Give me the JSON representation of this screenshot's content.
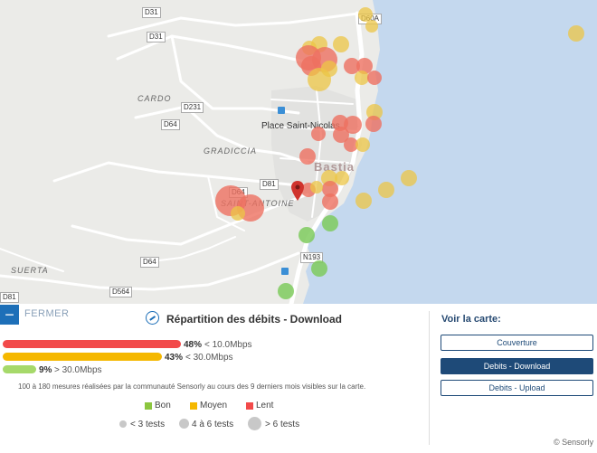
{
  "map": {
    "road_labels": [
      "D31",
      "D31",
      "D60A",
      "D231",
      "D64",
      "D64",
      "D81",
      "D64",
      "D81",
      "D564",
      "N193"
    ],
    "area_labels": [
      "CARDO",
      "GRADICCIA",
      "SAINT-ANTOINE",
      "SUERTA"
    ],
    "poi_label": "Place Saint-Nicolas",
    "city_label": "Bastia",
    "colors": {
      "land": "#ebebe8",
      "sea": "#c4d8ee",
      "road": "#ffffff",
      "slow": "#ee4f4f",
      "medium": "#f2c029",
      "good": "#7fcb5e",
      "marker": "#d0332d"
    }
  },
  "panel": {
    "close_label": "FERMER",
    "title": "Répartition des débits - Download",
    "bars": [
      {
        "percent": "48%",
        "range": "< 10.0Mbps",
        "value": 48,
        "color": "#f24a4a"
      },
      {
        "percent": "43%",
        "range": "< 30.0Mbps",
        "value": 43,
        "color": "#f5b800"
      },
      {
        "percent": "9%",
        "range": "> 30.0Mbps",
        "value": 9,
        "color": "#a6d96a"
      }
    ],
    "footnote": "100 à 180 mesures réalisées par la communauté Sensorly au cours des 9 derniers mois visibles sur la carte.",
    "legend": [
      {
        "label": "Bon",
        "color": "#8cc63f"
      },
      {
        "label": "Moyen",
        "color": "#f5b800"
      },
      {
        "label": "Lent",
        "color": "#f24a4a"
      }
    ],
    "sizes": [
      "< 3 tests",
      "4 à 6 tests",
      "> 6 tests"
    ]
  },
  "voir": {
    "title": "Voir la carte:",
    "buttons": [
      "Couverture",
      "Debits - Download",
      "Debits - Upload"
    ]
  },
  "copyright": "© Sensorly"
}
